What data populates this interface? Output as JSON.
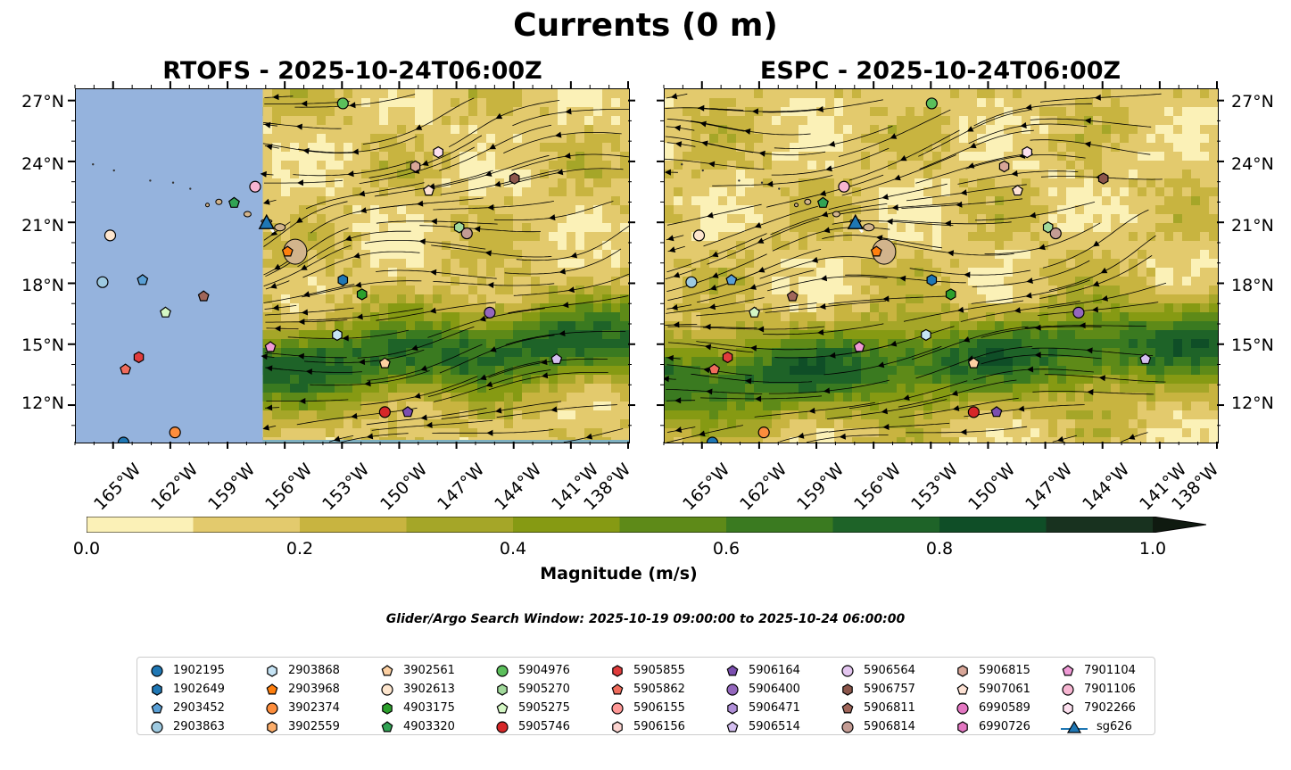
{
  "figure": {
    "title": "Currents (0 m)",
    "window_text": "Glider/Argo Search Window: 2025-10-19 09:00:00 to 2025-10-24 06:00:00"
  },
  "panels": [
    {
      "title": "RTOFS - 2025-10-24T06:00Z",
      "model": "RTOFS",
      "missing_data_west_of": "157.2°W"
    },
    {
      "title": "ESPC - 2025-10-24T06:00Z",
      "model": "ESPC"
    }
  ],
  "axes": {
    "x_labels": [
      "165°W",
      "162°W",
      "159°W",
      "156°W",
      "153°W",
      "150°W",
      "147°W",
      "144°W",
      "141°W",
      "138°W"
    ],
    "y_labels": [
      "27°N",
      "24°N",
      "21°N",
      "18°N",
      "15°N",
      "12°N"
    ],
    "extent": {
      "lon_min": -167,
      "lon_max": -138,
      "lat_min": 10.2,
      "lat_max": 27.6
    }
  },
  "colorbar": {
    "label": "Magnitude (m/s)",
    "ticks": [
      "0.0",
      "0.2",
      "0.4",
      "0.6",
      "0.8",
      "1.0"
    ],
    "levels": [
      0.0,
      0.1,
      0.2,
      0.3,
      0.4,
      0.5,
      0.6,
      0.7,
      0.8,
      0.9,
      1.0
    ],
    "colors": [
      "#fbf1b7",
      "#e3ca6d",
      "#c8b440",
      "#a5a628",
      "#869a13",
      "#5e8a18",
      "#3a7a20",
      "#1e6328",
      "#0f4e27",
      "#18321f"
    ],
    "extend": "max",
    "extend_color": "#0f1a10"
  },
  "land_color": "#d2b48c",
  "no_data_color": "#95b3dd",
  "legend": {
    "columns": [
      [
        {
          "label": "1902195",
          "marker": "circle",
          "color": "#1f77b4"
        },
        {
          "label": "1902649",
          "marker": "hexagon",
          "color": "#1f77b4"
        },
        {
          "label": "2903452",
          "marker": "pentagon",
          "color": "#5aa0d6"
        },
        {
          "label": "2903863",
          "marker": "circle",
          "color": "#9ecae1"
        }
      ],
      [
        {
          "label": "2903868",
          "marker": "hexagon",
          "color": "#c6e4f5"
        },
        {
          "label": "2903968",
          "marker": "pentagon",
          "color": "#ff7f0e"
        },
        {
          "label": "3902374",
          "marker": "circle",
          "color": "#fd8d3c"
        },
        {
          "label": "3902559",
          "marker": "hexagon",
          "color": "#fdae6b"
        }
      ],
      [
        {
          "label": "3902561",
          "marker": "pentagon",
          "color": "#fdd0a2"
        },
        {
          "label": "3902613",
          "marker": "circle",
          "color": "#fee6ce"
        },
        {
          "label": "4903175",
          "marker": "hexagon",
          "color": "#2ca02c"
        },
        {
          "label": "4903320",
          "marker": "pentagon",
          "color": "#31a354"
        }
      ],
      [
        {
          "label": "5904976",
          "marker": "circle",
          "color": "#5bbf5b"
        },
        {
          "label": "5905270",
          "marker": "hexagon",
          "color": "#a1d99b"
        },
        {
          "label": "5905275",
          "marker": "pentagon",
          "color": "#d4f7c4"
        },
        {
          "label": "5905746",
          "marker": "circle",
          "color": "#d62728"
        }
      ],
      [
        {
          "label": "5905855",
          "marker": "hexagon",
          "color": "#e03c3c"
        },
        {
          "label": "5905862",
          "marker": "pentagon",
          "color": "#f06c5c"
        },
        {
          "label": "5906155",
          "marker": "circle",
          "color": "#ff9896"
        },
        {
          "label": "5906156",
          "marker": "hexagon",
          "color": "#fcd4d0"
        }
      ],
      [
        {
          "label": "5906164",
          "marker": "pentagon",
          "color": "#7b4fb0"
        },
        {
          "label": "5906400",
          "marker": "circle",
          "color": "#9467bd"
        },
        {
          "label": "5906471",
          "marker": "hexagon",
          "color": "#b08fd8"
        },
        {
          "label": "5906514",
          "marker": "pentagon",
          "color": "#d4bff0"
        }
      ],
      [
        {
          "label": "5906564",
          "marker": "circle",
          "color": "#e4c6f0"
        },
        {
          "label": "5906757",
          "marker": "hexagon",
          "color": "#8c564b"
        },
        {
          "label": "5906811",
          "marker": "pentagon",
          "color": "#a0665a"
        },
        {
          "label": "5906814",
          "marker": "circle",
          "color": "#c49c94"
        }
      ],
      [
        {
          "label": "5906815",
          "marker": "hexagon",
          "color": "#d8a698"
        },
        {
          "label": "5907061",
          "marker": "pentagon",
          "color": "#fde2d4"
        },
        {
          "label": "6990589",
          "marker": "circle",
          "color": "#e377c2"
        },
        {
          "label": "6990726",
          "marker": "hexagon",
          "color": "#e377c2"
        }
      ],
      [
        {
          "label": "7901104",
          "marker": "pentagon",
          "color": "#f09ad6"
        },
        {
          "label": "7901106",
          "marker": "circle",
          "color": "#f7b6d2"
        },
        {
          "label": "7902266",
          "marker": "hexagon",
          "color": "#fde0ef"
        },
        {
          "label": "sg626",
          "marker": "triangle-line",
          "color": "#1f77b4"
        }
      ]
    ]
  },
  "markers": [
    {
      "id": "5904976",
      "lon": -153.0,
      "lat": 26.9
    },
    {
      "id": "7901106",
      "lon": -157.6,
      "lat": 22.8
    },
    {
      "id": "4903320",
      "lon": -158.7,
      "lat": 22.0
    },
    {
      "id": "3902613",
      "lon": -165.2,
      "lat": 20.4
    },
    {
      "id": "2903863",
      "lon": -165.6,
      "lat": 18.1
    },
    {
      "id": "2903452",
      "lon": -163.5,
      "lat": 18.2
    },
    {
      "id": "5905275",
      "lon": -162.3,
      "lat": 16.6
    },
    {
      "id": "5906811",
      "lon": -160.3,
      "lat": 17.4
    },
    {
      "id": "5905862",
      "lon": -164.4,
      "lat": 13.8
    },
    {
      "id": "5905855",
      "lon": -163.7,
      "lat": 14.4
    },
    {
      "id": "1902195",
      "lon": -164.5,
      "lat": 10.2
    },
    {
      "id": "3902374",
      "lon": -161.8,
      "lat": 10.7
    },
    {
      "id": "2903968",
      "lon": -155.9,
      "lat": 19.6
    },
    {
      "id": "1902649",
      "lon": -153.0,
      "lat": 18.2
    },
    {
      "id": "4903175",
      "lon": -152.0,
      "lat": 17.5
    },
    {
      "id": "2903868",
      "lon": -153.3,
      "lat": 15.5
    },
    {
      "id": "7901104",
      "lon": -156.8,
      "lat": 14.9
    },
    {
      "id": "3902561",
      "lon": -150.8,
      "lat": 14.1
    },
    {
      "id": "5905746",
      "lon": -150.8,
      "lat": 11.7
    },
    {
      "id": "5906164",
      "lon": -149.6,
      "lat": 11.7
    },
    {
      "id": "5906400",
      "lon": -145.3,
      "lat": 16.6
    },
    {
      "id": "5906514",
      "lon": -141.8,
      "lat": 14.3
    },
    {
      "id": "5906815",
      "lon": -149.2,
      "lat": 23.8
    },
    {
      "id": "7902266",
      "lon": -148.0,
      "lat": 24.5
    },
    {
      "id": "5907061",
      "lon": -148.5,
      "lat": 22.6
    },
    {
      "id": "5906757",
      "lon": -144.0,
      "lat": 23.2
    },
    {
      "id": "5905270",
      "lon": -146.9,
      "lat": 20.8
    },
    {
      "id": "5906814",
      "lon": -146.5,
      "lat": 20.5
    }
  ],
  "glider": {
    "id": "sg626",
    "lon": -157.0,
    "lat": 21.0
  }
}
